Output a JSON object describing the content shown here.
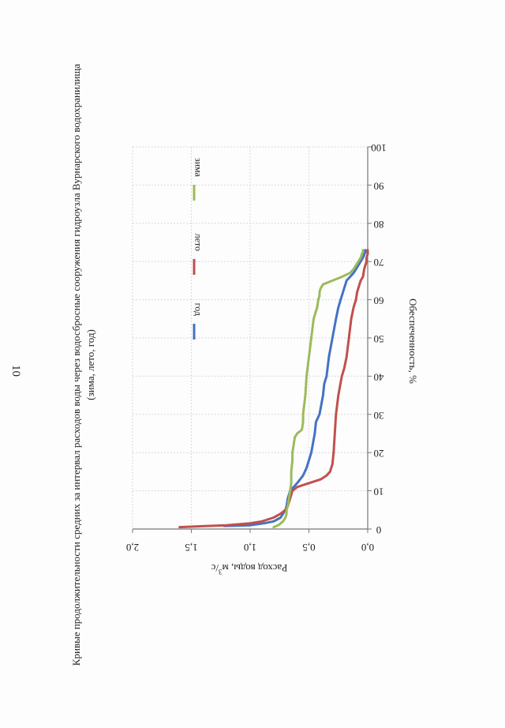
{
  "page_number": "10",
  "colors": {
    "year": "#4472C4",
    "summer": "#C0504D",
    "winter": "#9BBB59",
    "grid": "#d9d9d9",
    "axis": "#777777"
  },
  "chart_data": {
    "type": "line",
    "title": "Кривые продолжительности средних за интервал расходов воды через водосбросные сооружения гидроузла Вурнарского водохранилища",
    "subtitle": "(зима, лето, год)",
    "xlabel": "Обеспеченность, %",
    "ylabel": "Расход воды, м³/с",
    "ylabel_parts": {
      "main": "Расход воды, м",
      "sup": "3",
      "tail": "/с"
    },
    "xlim": [
      0,
      100
    ],
    "ylim": [
      0,
      2
    ],
    "x_ticks": [
      0,
      10,
      20,
      30,
      40,
      50,
      60,
      70,
      80,
      90,
      100
    ],
    "x_tick_labels": [
      "0",
      "10",
      "20",
      "30",
      "40",
      "50",
      "60",
      "70",
      "80",
      "90",
      "100"
    ],
    "y_ticks": [
      0,
      0.5,
      1.0,
      1.5,
      2.0
    ],
    "y_tick_labels": [
      "0,0",
      "0,5",
      "1,0",
      "1,5",
      "2,0"
    ],
    "grid": true,
    "legend_position": "top-right",
    "series": [
      {
        "name": "год",
        "color_key": "year",
        "x": [
          0.8,
          1,
          1.5,
          2,
          3,
          4,
          5,
          6,
          8,
          10,
          12,
          14,
          16,
          18,
          20,
          25,
          28,
          30,
          35,
          38,
          40,
          45,
          50,
          55,
          58,
          60,
          63,
          65,
          66,
          67,
          68,
          69,
          70,
          71,
          72.5,
          73
        ],
        "y": [
          1.22,
          1.0,
          0.88,
          0.8,
          0.74,
          0.72,
          0.7,
          0.69,
          0.68,
          0.66,
          0.6,
          0.55,
          0.52,
          0.5,
          0.48,
          0.45,
          0.44,
          0.41,
          0.38,
          0.37,
          0.35,
          0.33,
          0.3,
          0.27,
          0.25,
          0.23,
          0.2,
          0.18,
          0.15,
          0.12,
          0.1,
          0.08,
          0.06,
          0.04,
          0.02,
          0.02
        ]
      },
      {
        "name": "лето",
        "color_key": "summer",
        "x": [
          0.5,
          1,
          1.5,
          2,
          3,
          4,
          5,
          6,
          7,
          8,
          10,
          11,
          12,
          13,
          14,
          15,
          16,
          17,
          20,
          25,
          30,
          35,
          40,
          42,
          45,
          50,
          55,
          58,
          60,
          62,
          63,
          65,
          66,
          68,
          69,
          70,
          71,
          72,
          73
        ],
        "y": [
          1.6,
          1.2,
          1.0,
          0.9,
          0.8,
          0.74,
          0.7,
          0.68,
          0.67,
          0.66,
          0.64,
          0.6,
          0.5,
          0.4,
          0.35,
          0.32,
          0.31,
          0.3,
          0.29,
          0.28,
          0.27,
          0.25,
          0.22,
          0.2,
          0.18,
          0.16,
          0.14,
          0.12,
          0.1,
          0.09,
          0.08,
          0.06,
          0.04,
          0.03,
          0.02,
          0.01,
          0.01,
          0.0,
          0.0
        ]
      },
      {
        "name": "зима",
        "color_key": "winter",
        "x": [
          0.5,
          1,
          2,
          3,
          4,
          5,
          6,
          8,
          10,
          12,
          15,
          18,
          20,
          22,
          24,
          25,
          26,
          28,
          30,
          35,
          40,
          45,
          50,
          55,
          57,
          58,
          60,
          61,
          62,
          63,
          64,
          65,
          66,
          67,
          68,
          69,
          70,
          71,
          72,
          72.5,
          73
        ],
        "y": [
          0.8,
          0.76,
          0.72,
          0.7,
          0.69,
          0.69,
          0.68,
          0.67,
          0.66,
          0.65,
          0.65,
          0.64,
          0.64,
          0.63,
          0.62,
          0.6,
          0.56,
          0.55,
          0.55,
          0.53,
          0.52,
          0.5,
          0.48,
          0.46,
          0.44,
          0.43,
          0.42,
          0.41,
          0.41,
          0.4,
          0.38,
          0.3,
          0.22,
          0.15,
          0.12,
          0.1,
          0.08,
          0.06,
          0.05,
          0.04,
          0.04
        ]
      }
    ]
  }
}
